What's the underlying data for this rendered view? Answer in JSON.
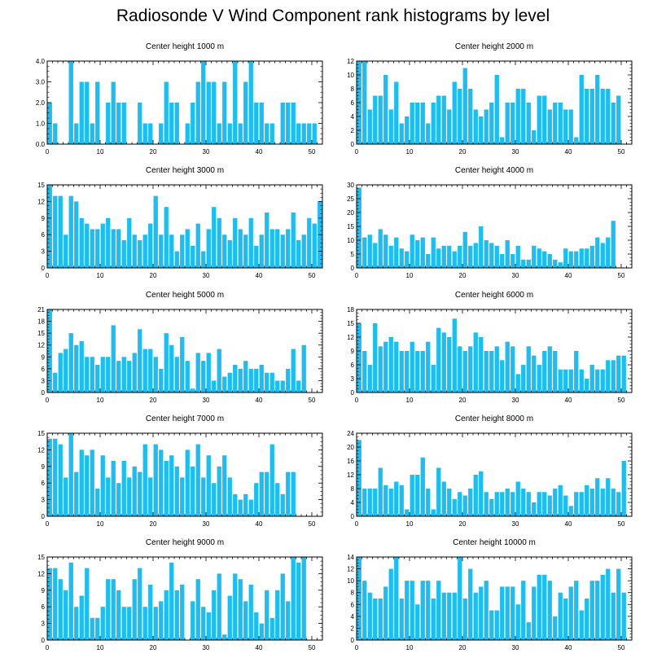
{
  "title": "Radiosonde V Wind Component rank histograms by level",
  "bar_color": "#19bff4",
  "chart_data": [
    {
      "type": "bar",
      "title": "Center height 1000 m",
      "x_ticks": [
        0,
        10,
        20,
        30,
        40,
        50
      ],
      "x_range": [
        0,
        52
      ],
      "y_ticks": [
        "0.0",
        "1.0",
        "2.0",
        "3.0",
        "4.0"
      ],
      "ylim": [
        0,
        4
      ],
      "values": [
        2,
        1,
        0,
        0,
        4,
        1,
        3,
        3,
        1,
        3,
        0,
        2,
        3,
        2,
        2,
        0,
        0,
        2,
        1,
        1,
        0,
        1,
        3,
        2,
        2,
        0,
        1,
        2,
        3,
        4,
        3,
        3,
        1,
        3,
        1,
        4,
        1,
        3,
        4,
        2,
        2,
        1,
        1,
        0,
        2,
        2,
        2,
        1,
        1,
        1,
        1
      ]
    },
    {
      "type": "bar",
      "title": "Center height 2000 m",
      "x_ticks": [
        0,
        10,
        20,
        30,
        40,
        50
      ],
      "x_range": [
        0,
        52
      ],
      "y_ticks": [
        "0",
        "2",
        "4",
        "6",
        "8",
        "10",
        "12"
      ],
      "ylim": [
        0,
        12
      ],
      "values": [
        12,
        12,
        5,
        7,
        7,
        10,
        5,
        9,
        3,
        4,
        6,
        6,
        6,
        3,
        6,
        7,
        7,
        5,
        9,
        8,
        11,
        8,
        5,
        4,
        5,
        6,
        10,
        1,
        6,
        6,
        8,
        8,
        6,
        2,
        7,
        7,
        5,
        6,
        6,
        5,
        5,
        1,
        10,
        8,
        8,
        10,
        8,
        8,
        6,
        7,
        0
      ]
    },
    {
      "type": "bar",
      "title": "Center height 3000 m",
      "x_ticks": [
        0,
        10,
        20,
        30,
        40,
        50
      ],
      "x_range": [
        0,
        52
      ],
      "y_ticks": [
        "0",
        "3",
        "6",
        "9",
        "12",
        "15"
      ],
      "ylim": [
        0,
        15
      ],
      "values": [
        15,
        13,
        13,
        6,
        13,
        12,
        9,
        8,
        7,
        7,
        8,
        9,
        7,
        7,
        5,
        9,
        6,
        5,
        6,
        8,
        13,
        6,
        11,
        6,
        3,
        6,
        7,
        4,
        8,
        3,
        7,
        11,
        9,
        6,
        5,
        9,
        7,
        6,
        9,
        4,
        6,
        10,
        7,
        7,
        6,
        7,
        10,
        5,
        6,
        9,
        8,
        12
      ]
    },
    {
      "type": "bar",
      "title": "Center height 4000 m",
      "x_ticks": [
        0,
        10,
        20,
        30,
        40,
        50
      ],
      "x_range": [
        0,
        52
      ],
      "y_ticks": [
        "0",
        "5",
        "10",
        "15",
        "20",
        "25",
        "30"
      ],
      "ylim": [
        0,
        30
      ],
      "values": [
        29,
        11,
        12,
        9,
        14,
        12,
        8,
        11,
        7,
        6,
        12,
        10,
        11,
        5,
        11,
        7,
        8,
        8,
        6,
        8,
        13,
        8,
        9,
        15,
        10,
        9,
        8,
        5,
        10,
        5,
        8,
        3,
        3,
        8,
        7,
        6,
        5,
        3,
        2,
        7,
        6,
        6,
        7,
        7,
        8,
        11,
        9,
        11,
        17
      ]
    },
    {
      "type": "bar",
      "title": "Center height 5000 m",
      "x_ticks": [
        0,
        10,
        20,
        30,
        40,
        50
      ],
      "x_range": [
        0,
        52
      ],
      "y_ticks": [
        "0",
        "3",
        "6",
        "9",
        "12",
        "15",
        "18",
        "21"
      ],
      "ylim": [
        0,
        21
      ],
      "values": [
        21,
        5,
        10,
        11,
        15,
        12,
        13,
        9,
        9,
        7,
        9,
        9,
        17,
        8,
        9,
        8,
        10,
        16,
        11,
        11,
        9,
        6,
        15,
        12,
        9,
        14,
        8,
        1,
        10,
        8,
        10,
        3,
        11,
        4,
        5,
        7,
        6,
        8,
        6,
        6,
        7,
        5,
        5,
        3,
        3,
        6,
        11,
        3,
        12
      ]
    },
    {
      "type": "bar",
      "title": "Center height 6000 m",
      "x_ticks": [
        0,
        10,
        20,
        30,
        40,
        50
      ],
      "x_range": [
        0,
        52
      ],
      "y_ticks": [
        "0",
        "3",
        "6",
        "9",
        "12",
        "15",
        "18"
      ],
      "ylim": [
        0,
        18
      ],
      "values": [
        15,
        9,
        6,
        15,
        10,
        11,
        12,
        11,
        9,
        9,
        11,
        9,
        9,
        11,
        6,
        14,
        13,
        12,
        16,
        10,
        9,
        10,
        13,
        12,
        9,
        9,
        10,
        7,
        11,
        10,
        4,
        6,
        10,
        8,
        6,
        9,
        10,
        9,
        5,
        5,
        5,
        9,
        5,
        3,
        6,
        5,
        5,
        7,
        7,
        8,
        8
      ]
    },
    {
      "type": "bar",
      "title": "Center height 7000 m",
      "x_ticks": [
        0,
        10,
        20,
        30,
        40,
        50
      ],
      "x_range": [
        0,
        52
      ],
      "y_ticks": [
        "0",
        "3",
        "6",
        "9",
        "12",
        "15"
      ],
      "ylim": [
        0,
        15
      ],
      "values": [
        14,
        14,
        13,
        7,
        15,
        8,
        12,
        11,
        12,
        5,
        11,
        7,
        10,
        6,
        10,
        7,
        9,
        8,
        13,
        7,
        13,
        12,
        10,
        11,
        9,
        7,
        12,
        9,
        13,
        7,
        11,
        6,
        9,
        11,
        7,
        4,
        3,
        4,
        3,
        6,
        8,
        8,
        13,
        6,
        4,
        8,
        8
      ]
    },
    {
      "type": "bar",
      "title": "Center height 8000 m",
      "x_ticks": [
        0,
        10,
        20,
        30,
        40,
        50
      ],
      "x_range": [
        0,
        52
      ],
      "y_ticks": [
        "0",
        "4",
        "8",
        "12",
        "16",
        "20",
        "24"
      ],
      "ylim": [
        0,
        24
      ],
      "values": [
        22,
        8,
        8,
        8,
        14,
        9,
        8,
        10,
        9,
        2,
        12,
        12,
        17,
        8,
        2,
        14,
        10,
        8,
        5,
        7,
        6,
        8,
        12,
        13,
        7,
        5,
        7,
        7,
        8,
        7,
        10,
        8,
        7,
        4,
        7,
        7,
        6,
        8,
        9,
        6,
        3,
        7,
        7,
        9,
        8,
        11,
        8,
        11,
        8,
        7,
        16
      ]
    },
    {
      "type": "bar",
      "title": "Center height 9000 m",
      "x_ticks": [
        0,
        10,
        20,
        30,
        40,
        50
      ],
      "x_range": [
        0,
        52
      ],
      "y_ticks": [
        "0",
        "3",
        "6",
        "9",
        "12",
        "15"
      ],
      "ylim": [
        0,
        15
      ],
      "values": [
        13,
        13,
        11,
        9,
        14,
        6,
        8,
        13,
        4,
        4,
        6,
        11,
        11,
        9,
        6,
        6,
        11,
        13,
        6,
        10,
        6,
        7,
        9,
        14,
        9,
        10,
        0,
        7,
        11,
        6,
        5,
        9,
        12,
        1,
        8,
        12,
        11,
        7,
        10,
        5,
        3,
        9,
        4,
        9,
        12,
        7,
        15,
        14,
        15
      ]
    },
    {
      "type": "bar",
      "title": "Center height 10000 m",
      "x_ticks": [
        0,
        10,
        20,
        30,
        40,
        50
      ],
      "x_range": [
        0,
        52
      ],
      "y_ticks": [
        "0",
        "2",
        "4",
        "6",
        "8",
        "10",
        "12",
        "14"
      ],
      "ylim": [
        0,
        14
      ],
      "values": [
        14,
        10,
        8,
        7,
        7,
        9,
        12,
        14,
        7,
        10,
        10,
        6,
        10,
        10,
        7,
        10,
        8,
        8,
        8,
        14,
        7,
        12,
        8,
        9,
        10,
        5,
        5,
        9,
        9,
        9,
        6,
        10,
        3,
        9,
        11,
        11,
        10,
        4,
        8,
        7,
        9,
        10,
        5,
        7,
        10,
        10,
        11,
        12,
        8,
        12,
        8
      ]
    }
  ]
}
